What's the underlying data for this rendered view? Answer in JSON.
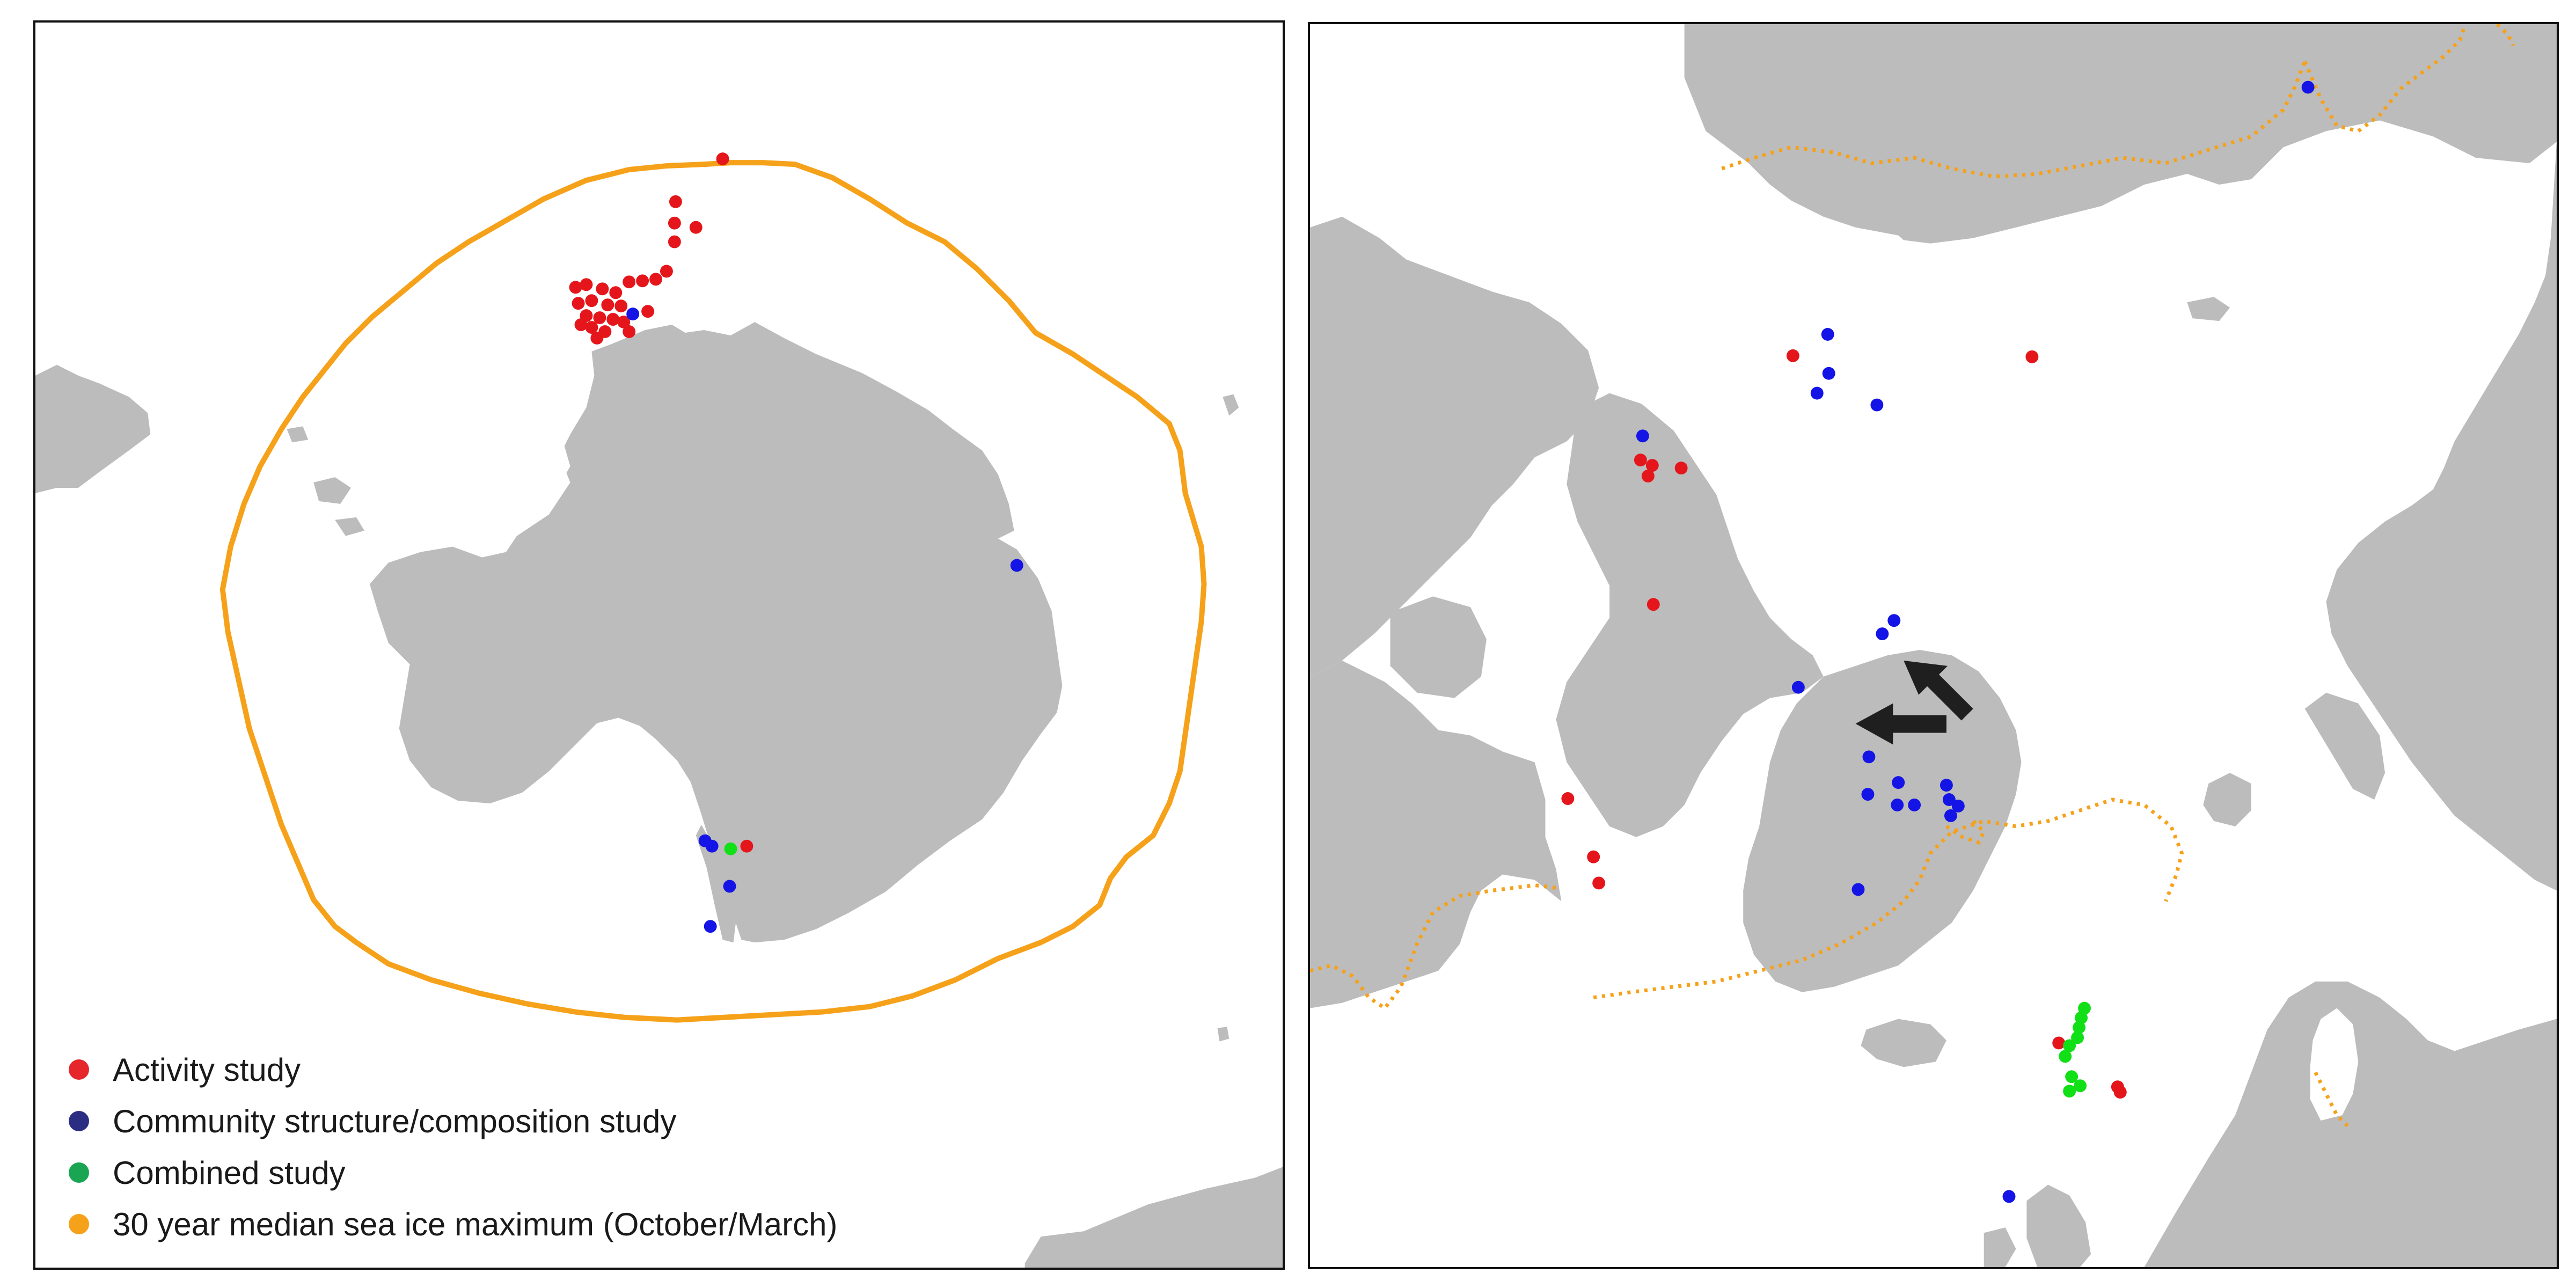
{
  "colors": {
    "activity": "#e5161b",
    "community": "#1414e6",
    "combined": "#11e016",
    "ice_edge": "#f6a11a",
    "land": "#bcbcbc",
    "arrow": "#1f1f1f"
  },
  "legend": {
    "items": [
      {
        "label": "Activity study",
        "color": "#e5262b"
      },
      {
        "label": "Community structure/composition study",
        "color": "#2b2d83"
      },
      {
        "label": "Combined study",
        "color": "#1aa552"
      },
      {
        "label": "30 year median sea ice maximum (October/March)",
        "color": "#f6a11a"
      }
    ]
  },
  "maps": {
    "south": {
      "region": "Antarctica",
      "ice_edge_month": "October"
    },
    "north": {
      "region": "Arctic",
      "ice_edge_month": "March"
    }
  }
}
